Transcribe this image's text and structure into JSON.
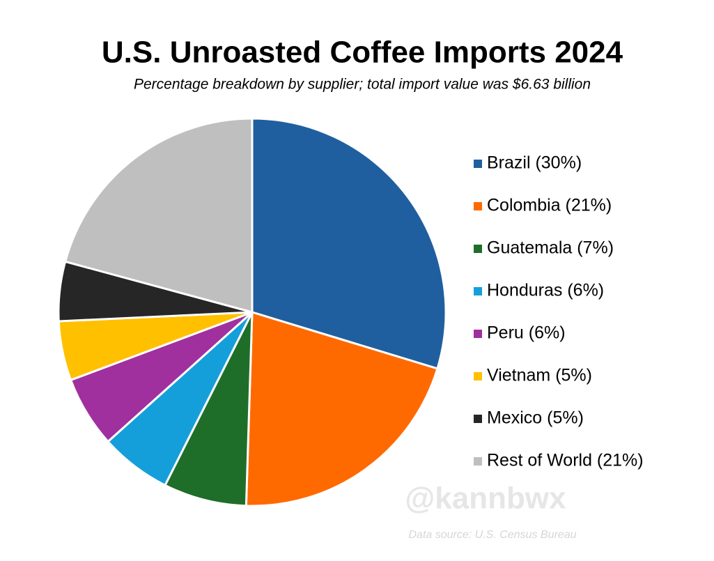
{
  "chart_data": {
    "type": "pie",
    "title": "U.S. Unroasted Coffee Imports 2024",
    "subtitle": "Percentage breakdown by supplier; total import value was $6.63 billion",
    "categories": [
      "Brazil (30%)",
      "Colombia (21%)",
      "Guatemala (7%)",
      "Honduras (6%)",
      "Peru (6%)",
      "Vietnam (5%)",
      "Mexico (5%)",
      "Rest of World (21%)"
    ],
    "values": [
      30,
      21,
      7,
      6,
      6,
      5,
      5,
      21
    ],
    "colors": [
      "#1f5f9f",
      "#ff6a00",
      "#1e6e2a",
      "#159fda",
      "#a0309e",
      "#ffc000",
      "#262626",
      "#bfbfbf"
    ],
    "legend": "right",
    "watermark": "@kannbwx",
    "source": "Data source: U.S. Census Bureau"
  }
}
